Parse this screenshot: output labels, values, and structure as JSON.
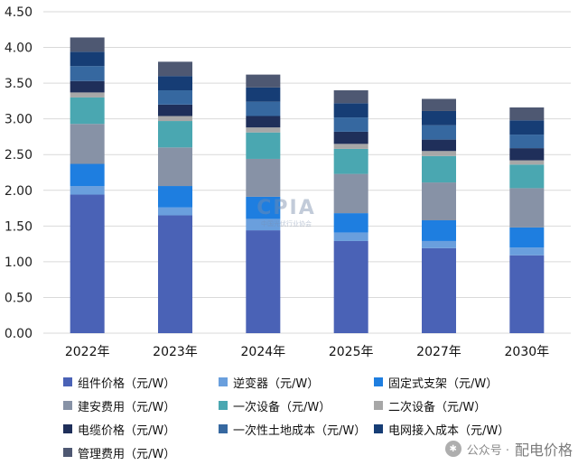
{
  "chart_data": {
    "type": "bar",
    "stacked": true,
    "title": "",
    "xlabel": "",
    "ylabel": "",
    "ylim": [
      0,
      4.5
    ],
    "yticks": [
      "0.00",
      "0.50",
      "1.00",
      "1.50",
      "2.00",
      "2.50",
      "3.00",
      "3.50",
      "4.00",
      "4.50"
    ],
    "grid": true,
    "legend_position": "bottom",
    "categories": [
      "2022年",
      "2023年",
      "2024年",
      "2025年",
      "2027年",
      "2030年"
    ],
    "series": [
      {
        "name": "组件价格（元/W）",
        "color": "#4a62b6",
        "values": [
          1.94,
          1.65,
          1.44,
          1.29,
          1.19,
          1.09
        ]
      },
      {
        "name": "逆变器（元/W）",
        "color": "#6a9fdd",
        "values": [
          0.12,
          0.11,
          0.16,
          0.12,
          0.1,
          0.11
        ]
      },
      {
        "name": "固定式支架（元/W）",
        "color": "#1e7ee0",
        "values": [
          0.31,
          0.3,
          0.31,
          0.27,
          0.29,
          0.28
        ]
      },
      {
        "name": "建安费用（元/W）",
        "color": "#8792a6",
        "values": [
          0.56,
          0.54,
          0.53,
          0.55,
          0.53,
          0.55
        ]
      },
      {
        "name": "一次设备（元/W）",
        "color": "#4aa7b1",
        "values": [
          0.37,
          0.37,
          0.37,
          0.35,
          0.37,
          0.33
        ]
      },
      {
        "name": "二次设备（元/W）",
        "color": "#a7a7a7",
        "values": [
          0.07,
          0.07,
          0.07,
          0.07,
          0.07,
          0.06
        ]
      },
      {
        "name": "电缆价格（元/W）",
        "color": "#1f2f5a",
        "values": [
          0.16,
          0.16,
          0.16,
          0.17,
          0.16,
          0.17
        ]
      },
      {
        "name": "一次性土地成本（元/W）",
        "color": "#3668a0",
        "values": [
          0.21,
          0.2,
          0.2,
          0.2,
          0.2,
          0.19
        ]
      },
      {
        "name": "电网接入成本（元/W）",
        "color": "#163d75",
        "values": [
          0.2,
          0.2,
          0.2,
          0.2,
          0.2,
          0.2
        ]
      },
      {
        "name": "管理费用（元/W）",
        "color": "#4e5872",
        "values": [
          0.2,
          0.2,
          0.18,
          0.18,
          0.17,
          0.18
        ]
      }
    ]
  },
  "watermark": {
    "logo": "CPIA",
    "text": "中国光伏行业协会"
  },
  "wechat": {
    "label": "公众号 ·",
    "name": "配电价格"
  }
}
